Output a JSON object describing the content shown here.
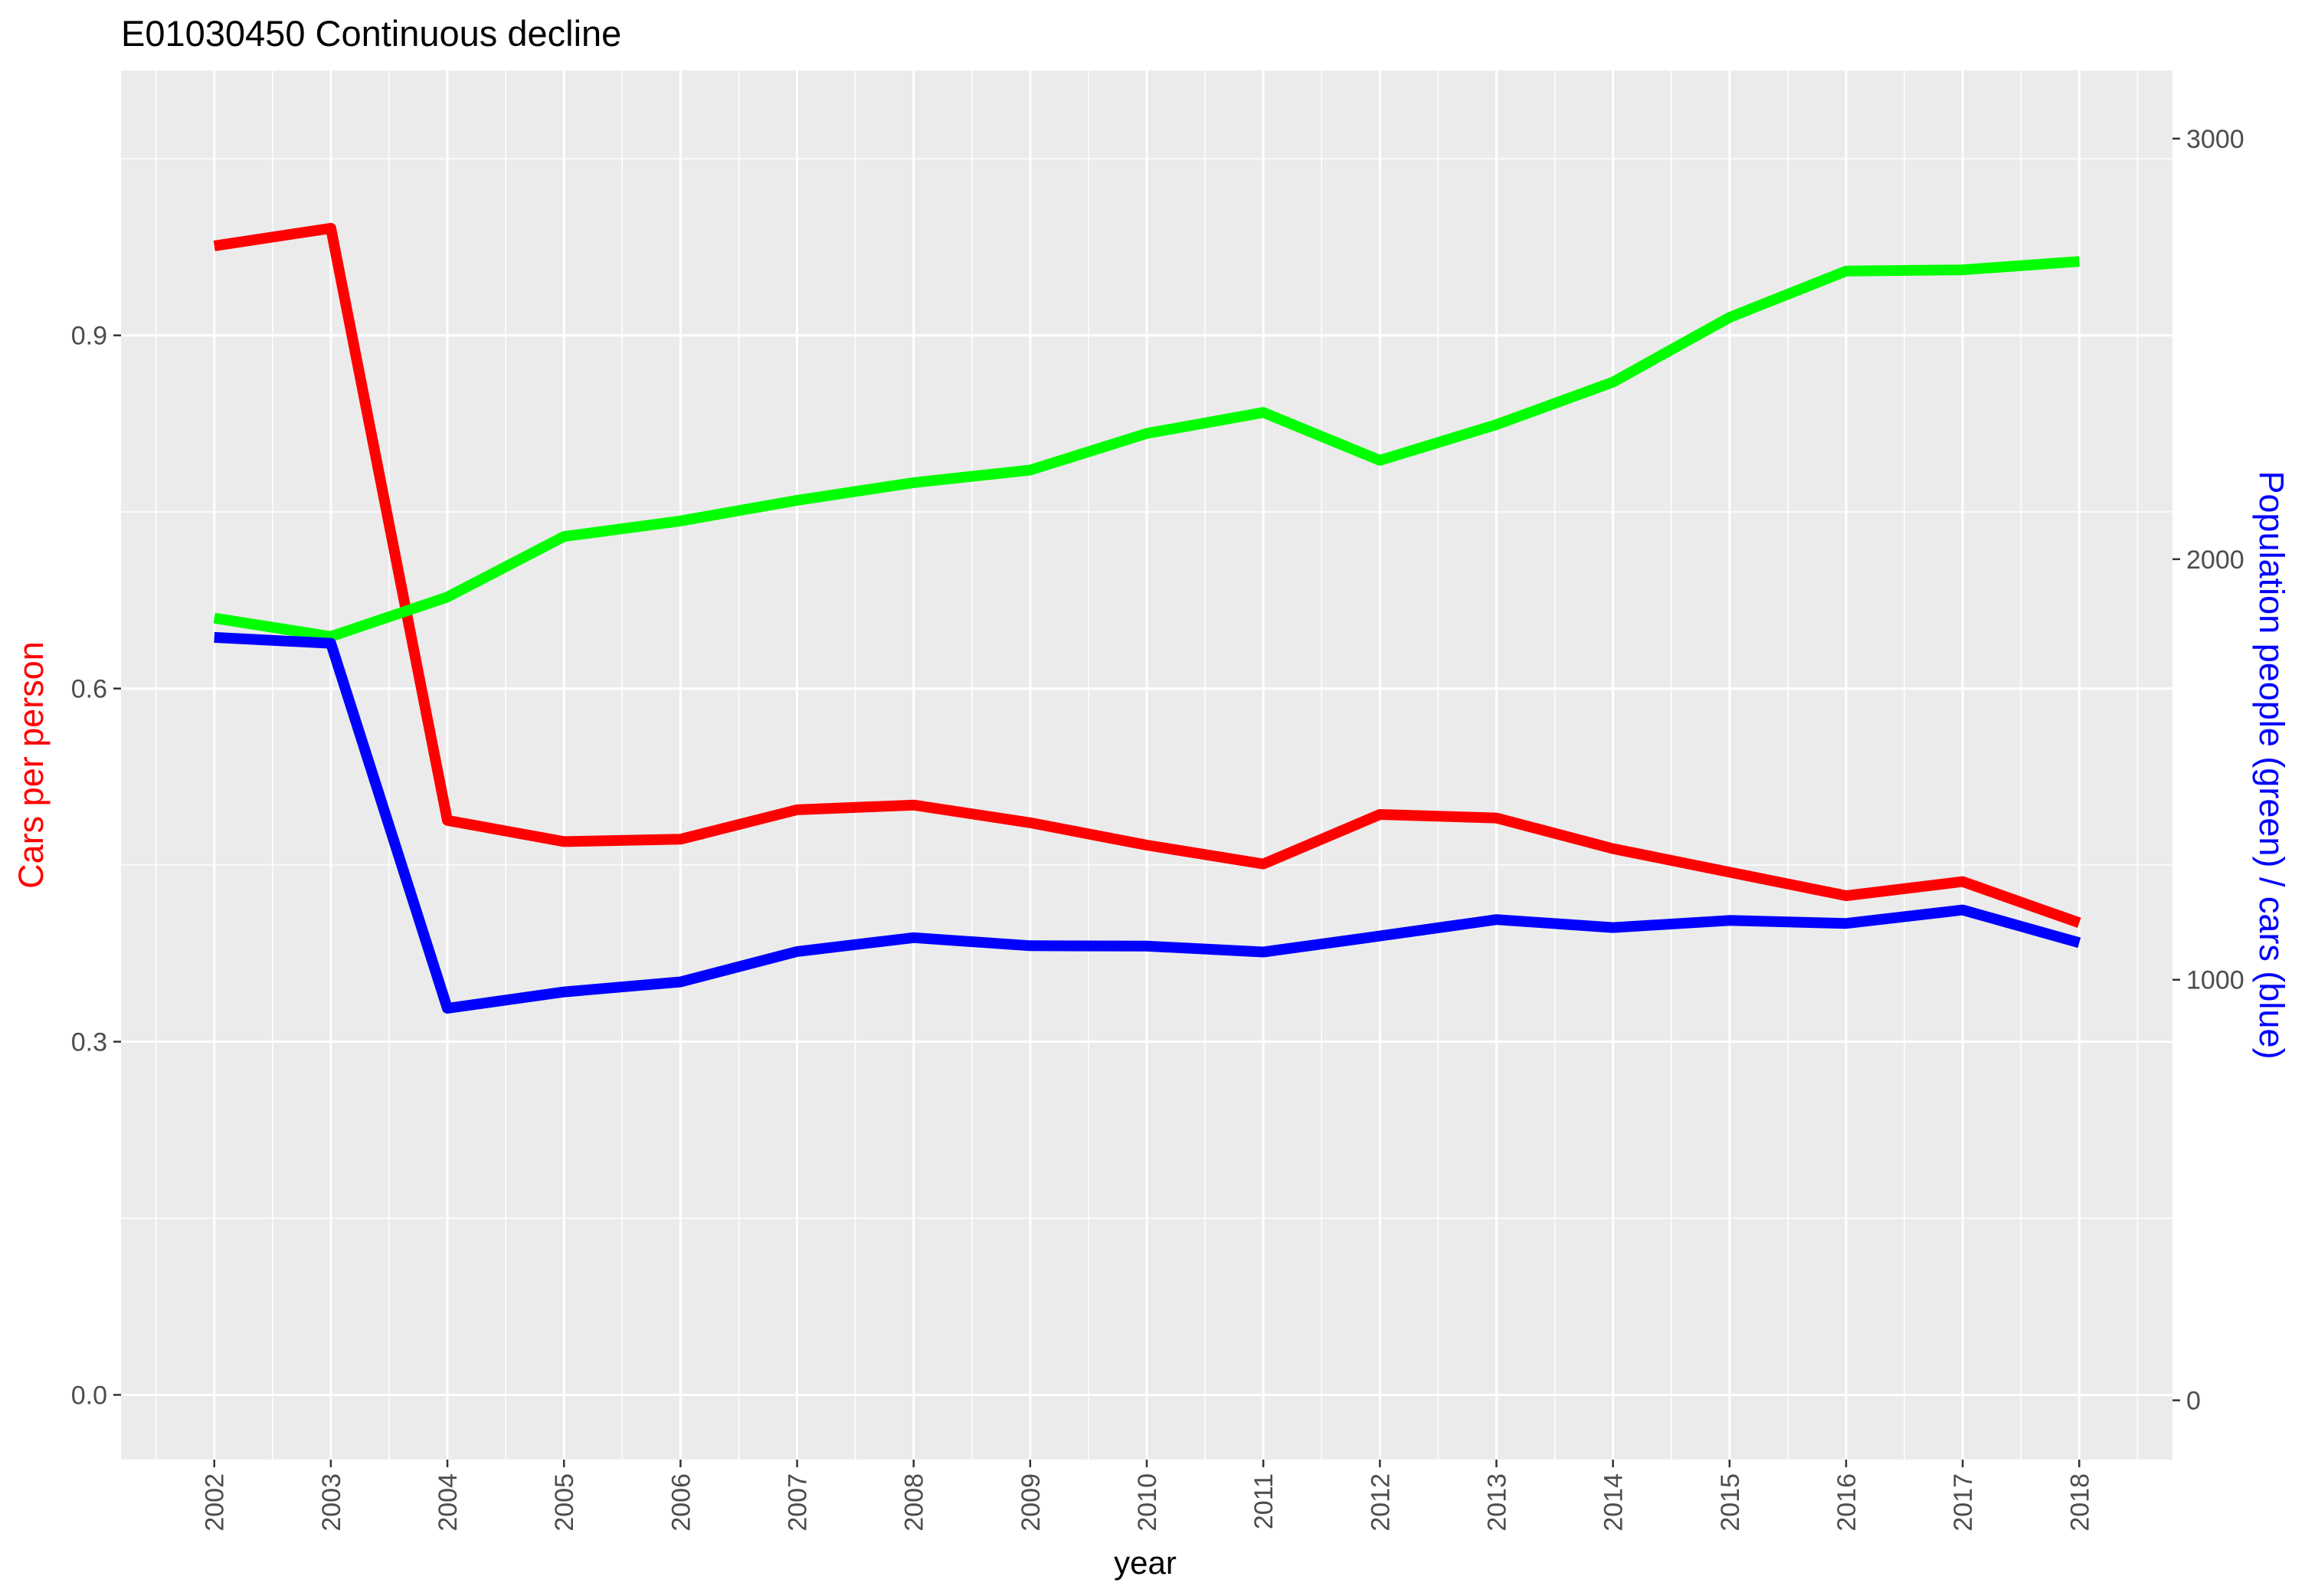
{
  "chart_data": {
    "type": "line",
    "title": "E01030450 Continuous decline",
    "xlabel": "year",
    "ylabel_left": "Cars per person",
    "ylabel_right": "Population people (green) / cars (blue)",
    "left_axis": {
      "ylim": [
        -0.055,
        1.125
      ],
      "ticks": [
        0.0,
        0.3,
        0.6,
        0.9
      ],
      "tick_labels": [
        "0.0",
        "0.3",
        "0.6",
        "0.9"
      ],
      "color": "#ff0000"
    },
    "right_axis": {
      "ylim": [
        -141,
        3162
      ],
      "ticks": [
        0,
        1000,
        2000,
        3000
      ],
      "tick_labels": [
        "0",
        "1000",
        "2000",
        "3000"
      ],
      "color": "#0000ff"
    },
    "xlim": [
      2001.2,
      2018.8
    ],
    "x": [
      2002,
      2003,
      2004,
      2005,
      2006,
      2007,
      2008,
      2009,
      2010,
      2011,
      2012,
      2013,
      2014,
      2015,
      2016,
      2017,
      2018
    ],
    "x_tick_labels": [
      "2002",
      "2003",
      "2004",
      "2005",
      "2006",
      "2007",
      "2008",
      "2009",
      "2010",
      "2011",
      "2012",
      "2013",
      "2014",
      "2015",
      "2016",
      "2017",
      "2018"
    ],
    "grid": true,
    "series": [
      {
        "axis": "left",
        "color": "#ff0000",
        "values": [
          0.976,
          0.991,
          0.488,
          0.47,
          0.472,
          0.497,
          0.501,
          0.486,
          0.467,
          0.451,
          0.493,
          0.49,
          0.464,
          0.444,
          0.424,
          0.436,
          0.401
        ]
      },
      {
        "axis": "right",
        "color": "#00ff00",
        "values": [
          1860,
          1816,
          1910,
          2054,
          2091,
          2140,
          2182,
          2212,
          2299,
          2349,
          2235,
          2320,
          2421,
          2575,
          2685,
          2688,
          2708
        ]
      },
      {
        "axis": "right",
        "color": "#0000ff",
        "values": [
          1814,
          1800,
          932,
          971,
          995,
          1067,
          1100,
          1081,
          1080,
          1066,
          1104,
          1143,
          1124,
          1141,
          1134,
          1166,
          1088
        ]
      }
    ]
  }
}
